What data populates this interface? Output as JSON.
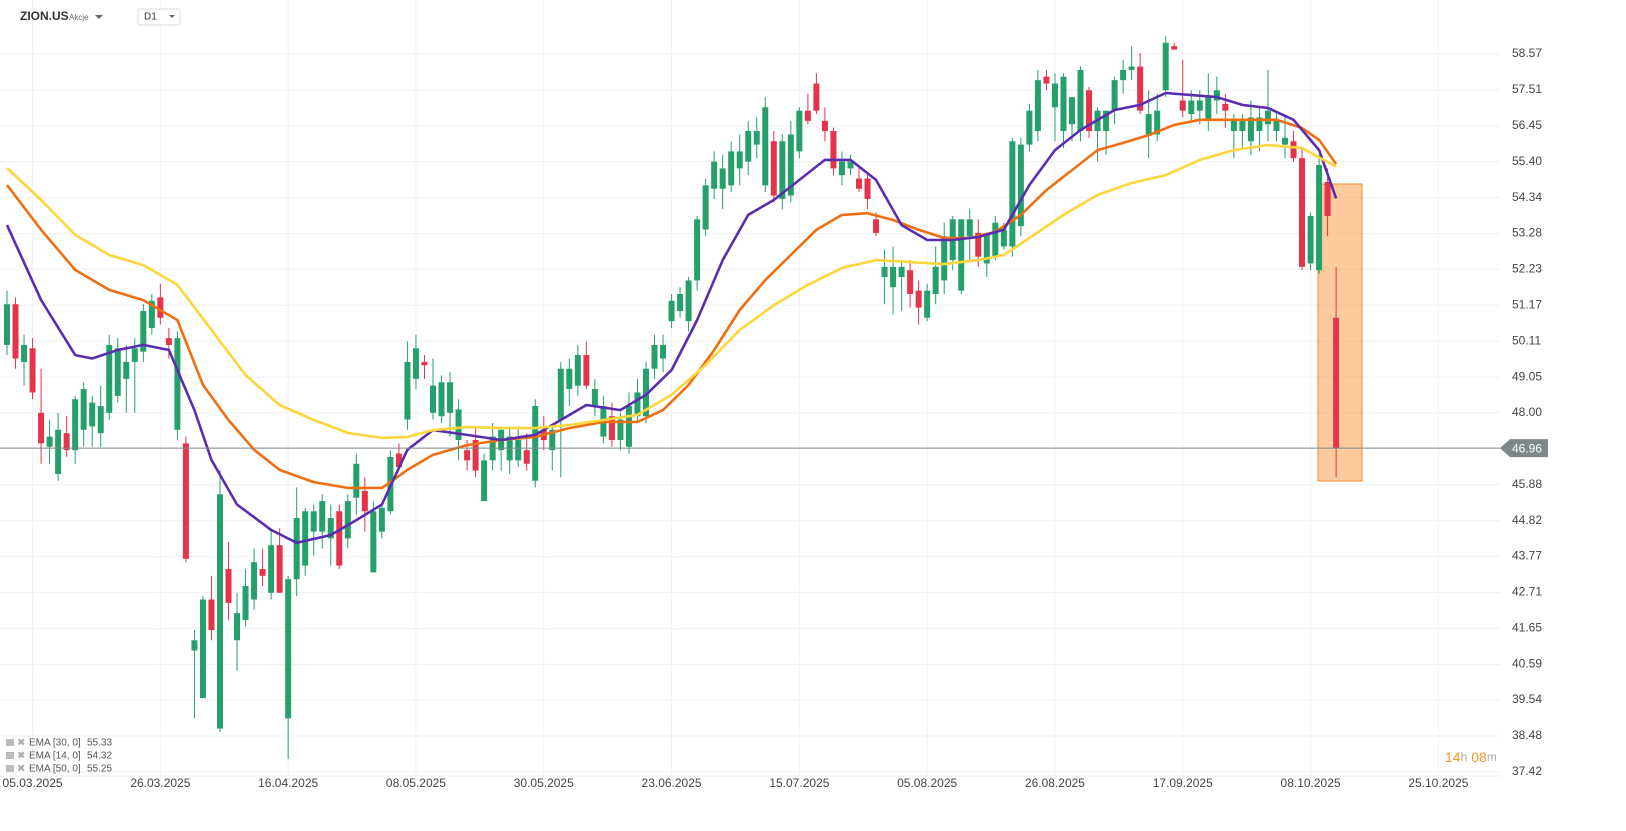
{
  "header": {
    "symbol": "ZION.US",
    "kind": "Akcje",
    "timeframe": "D1"
  },
  "chart_data": {
    "type": "candlestick",
    "candles": [
      [
        50.0,
        51.6,
        49.7,
        51.2
      ],
      [
        51.2,
        51.4,
        49.3,
        49.6
      ],
      [
        49.5,
        50.3,
        48.8,
        50.0
      ],
      [
        49.9,
        50.2,
        48.4,
        48.6
      ],
      [
        48.0,
        49.3,
        46.5,
        47.1
      ],
      [
        47.0,
        47.8,
        46.5,
        47.3
      ],
      [
        46.2,
        48.0,
        46.0,
        47.5
      ],
      [
        47.4,
        47.9,
        46.7,
        46.9
      ],
      [
        46.9,
        48.5,
        46.5,
        48.4
      ],
      [
        47.5,
        48.9,
        47.0,
        48.7
      ],
      [
        47.6,
        48.5,
        47.0,
        48.3
      ],
      [
        47.4,
        48.8,
        47.0,
        48.2
      ],
      [
        48.0,
        50.3,
        47.8,
        50.0
      ],
      [
        48.5,
        50.2,
        48.3,
        49.9
      ],
      [
        49.0,
        50.0,
        48.0,
        49.5
      ],
      [
        49.5,
        50.2,
        48.0,
        49.9
      ],
      [
        49.8,
        51.2,
        49.5,
        51.0
      ],
      [
        50.5,
        51.5,
        50.3,
        51.3
      ],
      [
        51.4,
        51.8,
        50.6,
        50.8
      ],
      [
        50.2,
        50.5,
        49.6,
        50.0
      ],
      [
        47.5,
        50.4,
        47.2,
        50.2
      ],
      [
        47.1,
        47.3,
        43.6,
        43.7
      ],
      [
        41.0,
        41.6,
        39.0,
        41.3
      ],
      [
        39.6,
        42.6,
        39.6,
        42.5
      ],
      [
        42.5,
        43.2,
        41.3,
        41.6
      ],
      [
        38.7,
        46.3,
        38.6,
        45.6
      ],
      [
        43.4,
        44.2,
        41.9,
        42.4
      ],
      [
        41.3,
        42.7,
        40.4,
        42.1
      ],
      [
        41.9,
        43.4,
        41.7,
        42.9
      ],
      [
        42.5,
        44.0,
        42.2,
        43.6
      ],
      [
        43.4,
        44.0,
        42.9,
        43.2
      ],
      [
        42.7,
        44.6,
        42.5,
        44.1
      ],
      [
        44.1,
        44.6,
        42.7,
        42.7
      ],
      [
        39.0,
        43.2,
        37.8,
        43.1
      ],
      [
        43.1,
        45.8,
        42.6,
        44.9
      ],
      [
        43.5,
        45.2,
        43.2,
        45.1
      ],
      [
        44.5,
        45.3,
        43.8,
        45.1
      ],
      [
        44.5,
        45.6,
        44.0,
        45.4
      ],
      [
        44.3,
        45.3,
        43.5,
        44.9
      ],
      [
        45.1,
        45.3,
        43.4,
        43.5
      ],
      [
        44.3,
        45.6,
        44.0,
        45.4
      ],
      [
        45.5,
        46.8,
        45.0,
        46.5
      ],
      [
        45.7,
        46.1,
        44.5,
        45.1
      ],
      [
        43.3,
        45.4,
        43.3,
        45.1
      ],
      [
        44.5,
        45.3,
        44.3,
        45.2
      ],
      [
        45.1,
        46.9,
        45.0,
        46.7
      ],
      [
        46.8,
        47.1,
        46.4,
        46.4
      ],
      [
        47.8,
        50.1,
        47.5,
        49.5
      ],
      [
        49.0,
        50.3,
        48.7,
        49.9
      ],
      [
        49.5,
        49.7,
        49.0,
        49.4
      ],
      [
        48.0,
        49.6,
        47.8,
        48.8
      ],
      [
        47.9,
        49.1,
        47.7,
        48.9
      ],
      [
        48.0,
        49.2,
        47.3,
        48.9
      ],
      [
        47.2,
        48.4,
        46.6,
        48.1
      ],
      [
        46.9,
        47.2,
        46.3,
        46.6
      ],
      [
        47.2,
        47.6,
        46.1,
        46.3
      ],
      [
        45.4,
        46.8,
        45.4,
        46.6
      ],
      [
        46.6,
        47.7,
        46.3,
        47.3
      ],
      [
        46.9,
        47.6,
        46.3,
        47.5
      ],
      [
        46.6,
        47.6,
        46.2,
        47.3
      ],
      [
        46.6,
        47.6,
        46.4,
        47.2
      ],
      [
        46.9,
        47.4,
        46.3,
        46.5
      ],
      [
        46.0,
        48.4,
        45.8,
        48.2
      ],
      [
        47.5,
        47.9,
        46.9,
        47.2
      ],
      [
        46.9,
        47.6,
        46.3,
        47.5
      ],
      [
        47.8,
        49.5,
        46.1,
        49.3
      ],
      [
        48.7,
        49.6,
        48.2,
        49.3
      ],
      [
        48.8,
        50.0,
        48.5,
        49.7
      ],
      [
        49.7,
        50.1,
        48.7,
        48.8
      ],
      [
        48.2,
        49.0,
        47.9,
        48.7
      ],
      [
        47.3,
        48.5,
        47.1,
        48.2
      ],
      [
        47.9,
        48.3,
        47.0,
        47.2
      ],
      [
        47.2,
        48.0,
        46.9,
        47.8
      ],
      [
        47.0,
        48.6,
        46.8,
        48.2
      ],
      [
        47.9,
        49.0,
        47.7,
        48.6
      ],
      [
        47.9,
        49.5,
        47.7,
        49.3
      ],
      [
        49.3,
        50.3,
        49.0,
        50.0
      ],
      [
        49.6,
        50.3,
        49.2,
        50.0
      ],
      [
        50.7,
        51.5,
        50.5,
        51.3
      ],
      [
        51.0,
        51.7,
        50.8,
        51.5
      ],
      [
        50.7,
        52.0,
        50.4,
        51.9
      ],
      [
        51.9,
        53.8,
        51.6,
        53.7
      ],
      [
        53.4,
        54.9,
        53.2,
        54.7
      ],
      [
        54.6,
        55.7,
        54.3,
        55.4
      ],
      [
        54.6,
        55.6,
        54.0,
        55.2
      ],
      [
        54.7,
        56.0,
        54.5,
        55.7
      ],
      [
        55.2,
        56.2,
        54.7,
        55.7
      ],
      [
        55.4,
        56.6,
        55.0,
        56.3
      ],
      [
        55.9,
        56.7,
        55.5,
        56.3
      ],
      [
        54.7,
        57.3,
        54.5,
        57.0
      ],
      [
        56.0,
        56.3,
        54.2,
        54.4
      ],
      [
        54.3,
        56.2,
        54.0,
        56.0
      ],
      [
        54.4,
        56.6,
        54.2,
        56.2
      ],
      [
        55.7,
        57.0,
        55.5,
        56.9
      ],
      [
        56.9,
        57.4,
        56.5,
        56.6
      ],
      [
        57.7,
        58.0,
        56.8,
        56.9
      ],
      [
        56.6,
        57.0,
        56.0,
        56.3
      ],
      [
        56.3,
        56.4,
        55.0,
        55.2
      ],
      [
        55.0,
        55.7,
        54.7,
        55.4
      ],
      [
        55.2,
        55.6,
        55.0,
        55.4
      ],
      [
        54.9,
        55.2,
        54.5,
        54.6
      ],
      [
        54.9,
        55.1,
        54.0,
        54.3
      ],
      [
        53.7,
        53.9,
        53.2,
        53.3
      ],
      [
        52.0,
        52.8,
        51.2,
        52.3
      ],
      [
        51.7,
        52.9,
        50.9,
        52.3
      ],
      [
        52.0,
        52.5,
        51.0,
        52.3
      ],
      [
        52.2,
        52.5,
        51.1,
        51.5
      ],
      [
        51.6,
        51.9,
        50.6,
        51.1
      ],
      [
        50.8,
        51.8,
        50.7,
        51.6
      ],
      [
        51.5,
        52.9,
        51.2,
        52.3
      ],
      [
        51.9,
        53.6,
        51.5,
        53.2
      ],
      [
        52.5,
        53.8,
        52.2,
        53.7
      ],
      [
        51.6,
        53.7,
        51.5,
        53.7
      ],
      [
        53.2,
        54.0,
        52.5,
        53.7
      ],
      [
        53.3,
        53.7,
        52.3,
        52.6
      ],
      [
        52.4,
        53.3,
        52.0,
        53.3
      ],
      [
        52.6,
        53.8,
        52.5,
        53.6
      ],
      [
        52.9,
        53.6,
        52.8,
        53.4
      ],
      [
        52.9,
        56.1,
        52.6,
        56.0
      ],
      [
        53.5,
        56.1,
        53.2,
        55.9
      ],
      [
        55.9,
        57.1,
        55.7,
        56.9
      ],
      [
        56.3,
        58.1,
        56.0,
        57.8
      ],
      [
        57.9,
        58.1,
        57.5,
        57.7
      ],
      [
        57.0,
        58.0,
        56.0,
        57.7
      ],
      [
        56.3,
        58.0,
        55.8,
        57.9
      ],
      [
        56.5,
        57.2,
        56.0,
        57.3
      ],
      [
        56.3,
        58.2,
        56.0,
        58.1
      ],
      [
        57.5,
        57.6,
        56.1,
        56.3
      ],
      [
        56.3,
        57.0,
        55.4,
        56.9
      ],
      [
        56.3,
        56.9,
        55.6,
        56.9
      ],
      [
        56.9,
        57.9,
        56.5,
        57.8
      ],
      [
        57.8,
        58.4,
        57.4,
        58.1
      ],
      [
        58.1,
        58.8,
        57.8,
        58.2
      ],
      [
        58.2,
        58.6,
        56.8,
        56.9
      ],
      [
        56.2,
        57.5,
        55.5,
        56.8
      ],
      [
        56.2,
        57.4,
        56.0,
        56.9
      ],
      [
        57.5,
        59.1,
        57.3,
        58.9
      ],
      [
        58.8,
        58.9,
        58.7,
        58.7
      ],
      [
        57.2,
        58.4,
        56.7,
        56.9
      ],
      [
        56.8,
        57.5,
        56.6,
        57.2
      ],
      [
        56.9,
        57.5,
        56.5,
        57.2
      ],
      [
        56.6,
        58.0,
        56.3,
        57.3
      ],
      [
        57.2,
        57.9,
        56.8,
        57.5
      ],
      [
        57.1,
        57.4,
        56.4,
        56.9
      ],
      [
        56.3,
        56.8,
        55.5,
        56.6
      ],
      [
        56.3,
        56.8,
        55.8,
        56.6
      ],
      [
        56.0,
        57.2,
        55.6,
        56.7
      ],
      [
        56.3,
        57.0,
        55.7,
        56.7
      ],
      [
        56.5,
        58.1,
        56.0,
        56.9
      ],
      [
        56.3,
        56.9,
        56.0,
        56.6
      ],
      [
        55.9,
        56.8,
        55.5,
        56.1
      ],
      [
        56.0,
        56.3,
        55.4,
        55.5
      ],
      [
        55.5,
        55.8,
        52.2,
        52.3
      ],
      [
        52.4,
        53.9,
        52.2,
        53.8
      ],
      [
        52.2,
        55.6,
        52.1,
        55.3
      ],
      [
        54.8,
        55.2,
        53.2,
        53.8
      ],
      [
        50.8,
        52.3,
        46.1,
        46.96
      ]
    ],
    "up_color": "#26a06a",
    "down_color": "#e5334b",
    "series": [
      {
        "name": "EMA [30, 0]",
        "color": "#ee6f12",
        "x": [
          0,
          4,
          8,
          12,
          16,
          20,
          23,
          26,
          29,
          32,
          36,
          40,
          44,
          47,
          50,
          54,
          58,
          62,
          66,
          70,
          74,
          77,
          80,
          83,
          86,
          89,
          92,
          95,
          98,
          101,
          104,
          107,
          110,
          113,
          116,
          119,
          122,
          125,
          128,
          131,
          134,
          137,
          140,
          143,
          146,
          149,
          152,
          154,
          156
        ],
        "values": [
          54.71,
          53.39,
          52.21,
          51.62,
          51.32,
          50.73,
          48.82,
          47.79,
          46.91,
          46.32,
          45.96,
          45.79,
          45.79,
          46.32,
          46.76,
          47.05,
          47.2,
          47.29,
          47.55,
          47.73,
          47.73,
          48.08,
          48.82,
          49.85,
          51.03,
          51.91,
          52.65,
          53.39,
          53.83,
          53.88,
          53.68,
          53.39,
          53.15,
          53.15,
          53.33,
          53.83,
          54.56,
          55.15,
          55.74,
          55.95,
          56.18,
          56.48,
          56.63,
          56.63,
          56.63,
          56.63,
          56.39,
          56.04,
          55.33
        ]
      },
      {
        "name": "EMA [14, 0]",
        "color": "#5a2db0",
        "x": [
          0,
          4,
          8,
          10,
          13,
          16,
          19,
          22,
          24,
          27,
          31,
          34,
          38,
          41,
          44,
          47,
          50,
          54,
          58,
          62,
          65,
          68,
          72,
          75,
          78,
          81,
          84,
          87,
          90,
          93,
          96,
          99,
          102,
          105,
          108,
          111,
          114,
          117,
          120,
          123,
          126,
          130,
          133,
          136,
          139,
          142,
          145,
          148,
          151,
          154,
          156
        ],
        "values": [
          53.53,
          51.32,
          49.7,
          49.6,
          49.85,
          50.0,
          49.85,
          48.08,
          46.61,
          45.3,
          44.55,
          44.17,
          44.4,
          44.84,
          45.3,
          46.91,
          47.49,
          47.35,
          47.2,
          47.35,
          47.79,
          48.23,
          48.08,
          48.53,
          49.26,
          50.73,
          52.5,
          53.83,
          54.27,
          54.86,
          55.45,
          55.45,
          54.86,
          53.53,
          53.09,
          53.09,
          53.18,
          53.39,
          54.71,
          55.74,
          56.33,
          56.92,
          57.07,
          57.42,
          57.36,
          57.3,
          57.07,
          56.98,
          56.63,
          55.74,
          54.32
        ]
      },
      {
        "name": "EMA [50, 0]",
        "color": "#fcd63a",
        "x": [
          0,
          4,
          8,
          12,
          16,
          20,
          24,
          28,
          32,
          36,
          40,
          44,
          47,
          50,
          54,
          58,
          62,
          66,
          70,
          74,
          78,
          82,
          86,
          90,
          94,
          98,
          102,
          106,
          110,
          114,
          117,
          120,
          124,
          128,
          132,
          136,
          140,
          144,
          148,
          152,
          156
        ],
        "values": [
          55.21,
          54.27,
          53.24,
          52.65,
          52.35,
          51.77,
          50.44,
          49.11,
          48.23,
          47.79,
          47.41,
          47.26,
          47.29,
          47.49,
          47.58,
          47.55,
          47.55,
          47.64,
          47.79,
          47.94,
          48.53,
          49.41,
          50.44,
          51.17,
          51.77,
          52.27,
          52.5,
          52.44,
          52.38,
          52.5,
          52.65,
          53.15,
          53.83,
          54.42,
          54.77,
          55.0,
          55.45,
          55.74,
          55.89,
          55.8,
          55.25
        ]
      }
    ],
    "ylim": [
      36.89,
      60.16
    ],
    "yticks": [
      58.57,
      57.51,
      56.45,
      {
        "value": 55.4,
        "label": "55.40"
      },
      54.34,
      53.28,
      52.23,
      51.17,
      50.11,
      49.05,
      {
        "value": 48,
        "label": "48.00"
      },
      45.88,
      44.82,
      43.77,
      42.71,
      41.65,
      40.59,
      39.54,
      38.48,
      37.42
    ],
    "xtick_labels": [
      "05.03.2025",
      "26.03.2025",
      "16.04.2025",
      "08.05.2025",
      "30.05.2025",
      "23.06.2025",
      "15.07.2025",
      "05.08.2025",
      "26.08.2025",
      "17.09.2025",
      "08.10.2025",
      "25.10.2025"
    ],
    "last_price": 46.96,
    "grid": true,
    "countdown": [
      "14",
      "h",
      "08",
      "m"
    ]
  }
}
